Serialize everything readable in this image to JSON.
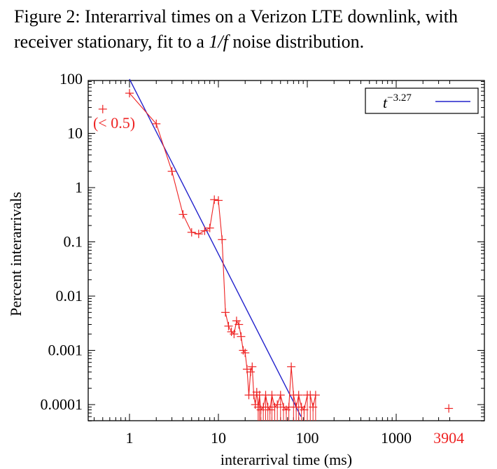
{
  "caption": {
    "prefix": "Figure 2: Interarrival times on a Verizon LTE downlink, with receiver stationary, fit to a ",
    "math": "1/f",
    "suffix": " noise distribution."
  },
  "chart_data": {
    "type": "line",
    "title": "Figure 2: Interarrival times on a Verizon LTE downlink, with receiver stationary, fit to a 1/f noise distribution.",
    "xlabel": "interarrival time (ms)",
    "ylabel": "Percent interarrivals",
    "xscale": "log",
    "yscale": "log",
    "xlim": [
      0.35,
      4200
    ],
    "ylim": [
      6e-05,
      100
    ],
    "x_tick_labels": [
      "1",
      "10",
      "100",
      "1000"
    ],
    "x_ticks": [
      1,
      10,
      100,
      1000
    ],
    "y_tick_labels": [
      "0.0001",
      "0.001",
      "0.01",
      "0.1",
      "1",
      "10",
      "100"
    ],
    "y_ticks": [
      0.0001,
      0.001,
      0.01,
      0.1,
      1,
      10,
      100
    ],
    "grid": false,
    "legend_position": "top-right",
    "annotations": [
      {
        "text": "(< 0.5)",
        "x": 0.5,
        "y": 28,
        "color": "#ee2222"
      },
      {
        "text": "3904",
        "x": 3904,
        "y": 6e-05,
        "color": "#ee2222"
      }
    ],
    "outlier": {
      "x": 3904,
      "y": 8.5e-05
    },
    "series": [
      {
        "name": "",
        "color": "#ee2222",
        "marker": "+",
        "x": [
          1,
          2,
          3,
          4,
          5,
          6,
          7,
          8,
          9,
          10,
          11,
          12,
          13,
          14,
          15,
          16,
          17,
          18,
          19,
          20,
          21,
          22,
          23,
          24,
          25,
          26,
          27,
          28,
          29,
          30,
          32,
          34,
          36,
          38,
          40,
          43,
          46,
          50,
          54,
          58,
          62,
          66,
          70,
          75,
          80,
          86,
          92,
          100,
          108,
          116,
          124
        ],
        "y": [
          55,
          15,
          2,
          0.32,
          0.15,
          0.14,
          0.16,
          0.18,
          0.6,
          0.58,
          0.11,
          0.005,
          0.0028,
          0.0022,
          0.002,
          0.0035,
          0.003,
          0.0018,
          0.001,
          0.0009,
          0.00045,
          0.00015,
          0.0004,
          0.0005,
          0.00015,
          0.0001,
          0.00017,
          9e-05,
          0.00015,
          8e-05,
          9e-05,
          0.00015,
          9e-05,
          8e-05,
          0.00015,
          9e-05,
          0.0001,
          0.00015,
          9e-05,
          8e-05,
          9e-05,
          0.0005,
          0.00015,
          9e-05,
          0.00015,
          9e-05,
          8e-05,
          0.00015,
          0.00015,
          9e-05,
          0.00015
        ]
      },
      {
        "name": "t^-3.27",
        "color": "#2222cc",
        "marker": "none",
        "x": [
          1,
          85
        ],
        "y": [
          100,
          6e-05
        ]
      }
    ],
    "lone_point": {
      "x": 0.5,
      "y": 28
    }
  },
  "legend": {
    "base": "t",
    "exponent": "−3.27"
  }
}
